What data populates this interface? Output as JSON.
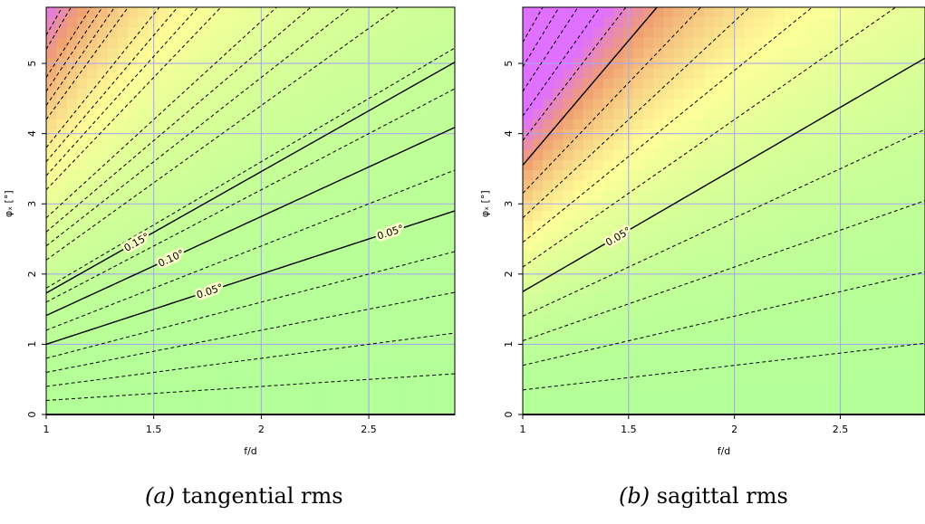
{
  "chart_data": [
    {
      "type": "contour",
      "caption_tag": "(a)",
      "caption_text": "tangential rms",
      "xlabel": "f/d",
      "ylabel": "φₓ [°]",
      "xlim": [
        1,
        2.9
      ],
      "ylim": [
        0,
        5.8
      ],
      "xticks": [
        "1",
        "1.5",
        "2",
        "2.5"
      ],
      "yticks": [
        "0",
        "1",
        "2",
        "3",
        "4",
        "5"
      ],
      "grid": true,
      "contour_model": "value ∝ phi^2 / (f/d)^2",
      "labeled_contours": [
        {
          "level": "0.05°",
          "through": [
            1,
            1.0
          ]
        },
        {
          "level": "0.10°",
          "through": [
            1,
            1.41
          ]
        },
        {
          "level": "0.15°",
          "through": [
            1,
            1.73
          ]
        }
      ],
      "contour_labels": [
        {
          "text": "0.15°",
          "x": 1.42,
          "level_index": 2
        },
        {
          "text": "0.10°",
          "x": 1.58,
          "level_index": 1
        },
        {
          "text": "0.05°",
          "x": 1.76,
          "level_index": 0
        },
        {
          "text": "0.05°",
          "x": 2.6,
          "level_index": 0
        }
      ],
      "dashed_levels_at_x1": [
        0.2,
        0.4,
        0.6,
        0.8,
        1.2,
        1.6,
        1.8,
        2.2,
        2.4,
        2.6,
        2.8,
        3.2,
        3.4,
        3.6,
        3.8,
        4.2,
        4.4,
        4.6,
        4.8,
        5.2,
        5.4
      ]
    },
    {
      "type": "contour",
      "caption_tag": "(b)",
      "caption_text": "sagittal rms",
      "xlabel": "f/d",
      "ylabel": "φₓ [°]",
      "xlim": [
        1,
        2.9
      ],
      "ylim": [
        0,
        5.8
      ],
      "xticks": [
        "1",
        "1.5",
        "2",
        "2.5"
      ],
      "yticks": [
        "0",
        "1",
        "2",
        "3",
        "4",
        "5"
      ],
      "grid": true,
      "contour_model": "value ∝ phi^2 / (f/d)^2",
      "labeled_contours": [
        {
          "level": "0.05°",
          "through": [
            1,
            1.75
          ]
        }
      ],
      "contour_labels": [
        {
          "text": "0.05°",
          "x": 1.45,
          "level_index": 0
        }
      ],
      "extra_solid_at_x1": [
        3.55
      ],
      "dashed_levels_at_x1": [
        0.35,
        0.7,
        1.05,
        1.4,
        2.1,
        2.45,
        2.8,
        3.15,
        3.9,
        4.25,
        4.6,
        4.95,
        5.3
      ]
    }
  ],
  "colors": {
    "low": "#b3ff98",
    "mid": "#ffff99",
    "high": "#f0a070",
    "peak": "#e070ff",
    "grid": "#a9a9ee",
    "line": "#000000"
  }
}
